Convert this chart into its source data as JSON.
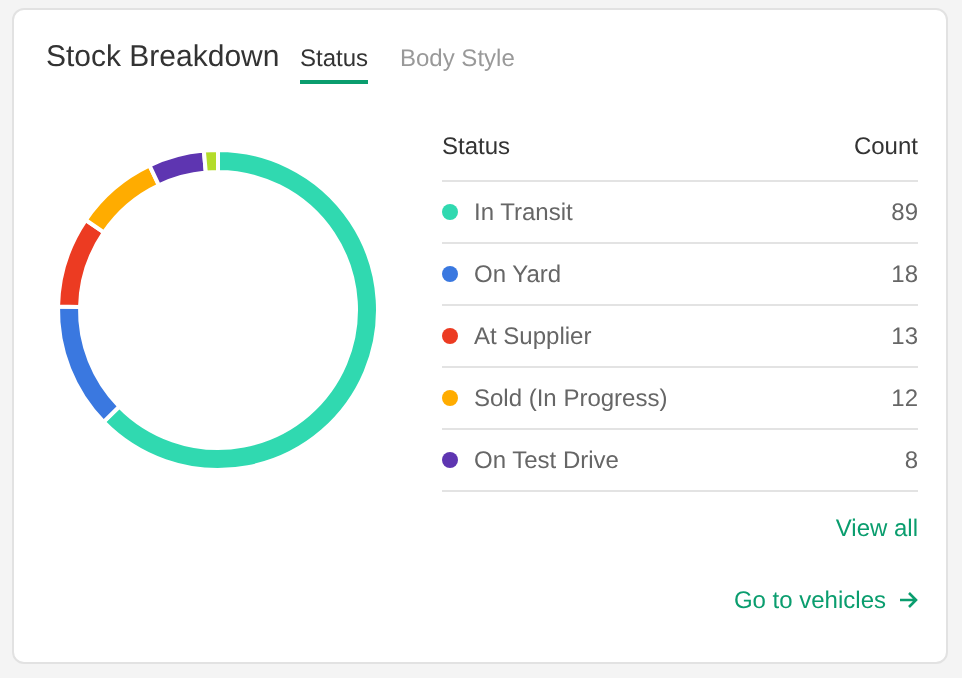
{
  "chart_data": {
    "type": "donut",
    "title": "Stock Breakdown",
    "categories": [
      "In Transit",
      "On Yard",
      "At Supplier",
      "Sold (In Progress)",
      "On Test Drive",
      null
    ],
    "values": [
      89,
      18,
      13,
      12,
      8,
      2
    ],
    "colors": [
      "#30d9b0",
      "#3a78e0",
      "#ec3b22",
      "#ffac00",
      "#5e35b1",
      "#b4dc2a"
    ],
    "value_labels": [
      "89",
      "18",
      "13",
      "12",
      "8",
      null
    ],
    "legend": "right",
    "legend_title": "Status",
    "annotations": [
      "Status",
      "Body Style",
      "Count",
      "View all",
      "Go to vehicles"
    ]
  }
}
